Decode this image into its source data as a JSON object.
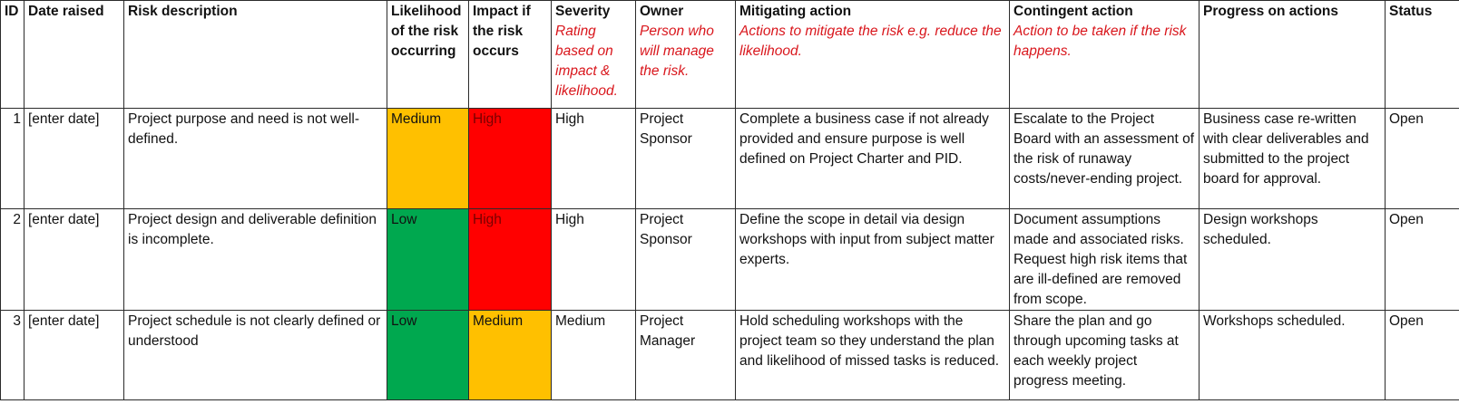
{
  "headers": {
    "id": "ID",
    "date_raised": "Date raised",
    "risk_description": "Risk description",
    "likelihood": "Likelihood of the risk occurring",
    "impact": "Impact if the risk occurs",
    "severity": "Severity",
    "severity_hint": "Rating based on impact & likelihood.",
    "owner": "Owner",
    "owner_hint": "Person who will manage the risk.",
    "mitigating_action": "Mitigating action",
    "mitigating_hint": "Actions to mitigate the risk e.g. reduce the likelihood.",
    "contingent_action": "Contingent action",
    "contingent_hint": "Action to be taken if the risk happens.",
    "progress": "Progress on actions",
    "status": "Status"
  },
  "colors": {
    "high": "#ff0000",
    "medium": "#ffc000",
    "low": "#00a84f",
    "hint_text": "#d9161c"
  },
  "rows": [
    {
      "id": "1",
      "date": "[enter date]",
      "description": "Project purpose and need is not well-defined.",
      "likelihood": "Medium",
      "impact": "High",
      "severity": "High",
      "owner": "Project Sponsor",
      "mitigating": "Complete a business case if not already provided and ensure purpose is well defined on Project Charter and PID.",
      "contingent": "Escalate to the Project Board with an assessment of the risk of runaway costs/never-ending project.",
      "progress": "Business case re-written with clear deliverables and submitted to the project board for approval.",
      "status": "Open"
    },
    {
      "id": "2",
      "date": "[enter date]",
      "description": "Project design and deliverable definition is incomplete.",
      "likelihood": "Low",
      "impact": "High",
      "severity": "High",
      "owner": "Project Sponsor",
      "mitigating": "Define the scope in detail via design workshops with input from subject matter experts.",
      "contingent": "Document assumptions made and associated risks. Request high risk items that are ill-defined are removed from scope.",
      "progress": "Design workshops scheduled.",
      "status": "Open"
    },
    {
      "id": "3",
      "date": "[enter date]",
      "description": "Project schedule is not clearly defined or understood",
      "likelihood": "Low",
      "impact": "Medium",
      "severity": "Medium",
      "owner": "Project Manager",
      "mitigating": "Hold scheduling workshops with the project team so they understand the plan and likelihood of missed tasks is reduced.",
      "contingent": "Share the plan and go through upcoming tasks at each weekly project progress meeting.",
      "progress": "Workshops scheduled.",
      "status": "Open"
    }
  ]
}
